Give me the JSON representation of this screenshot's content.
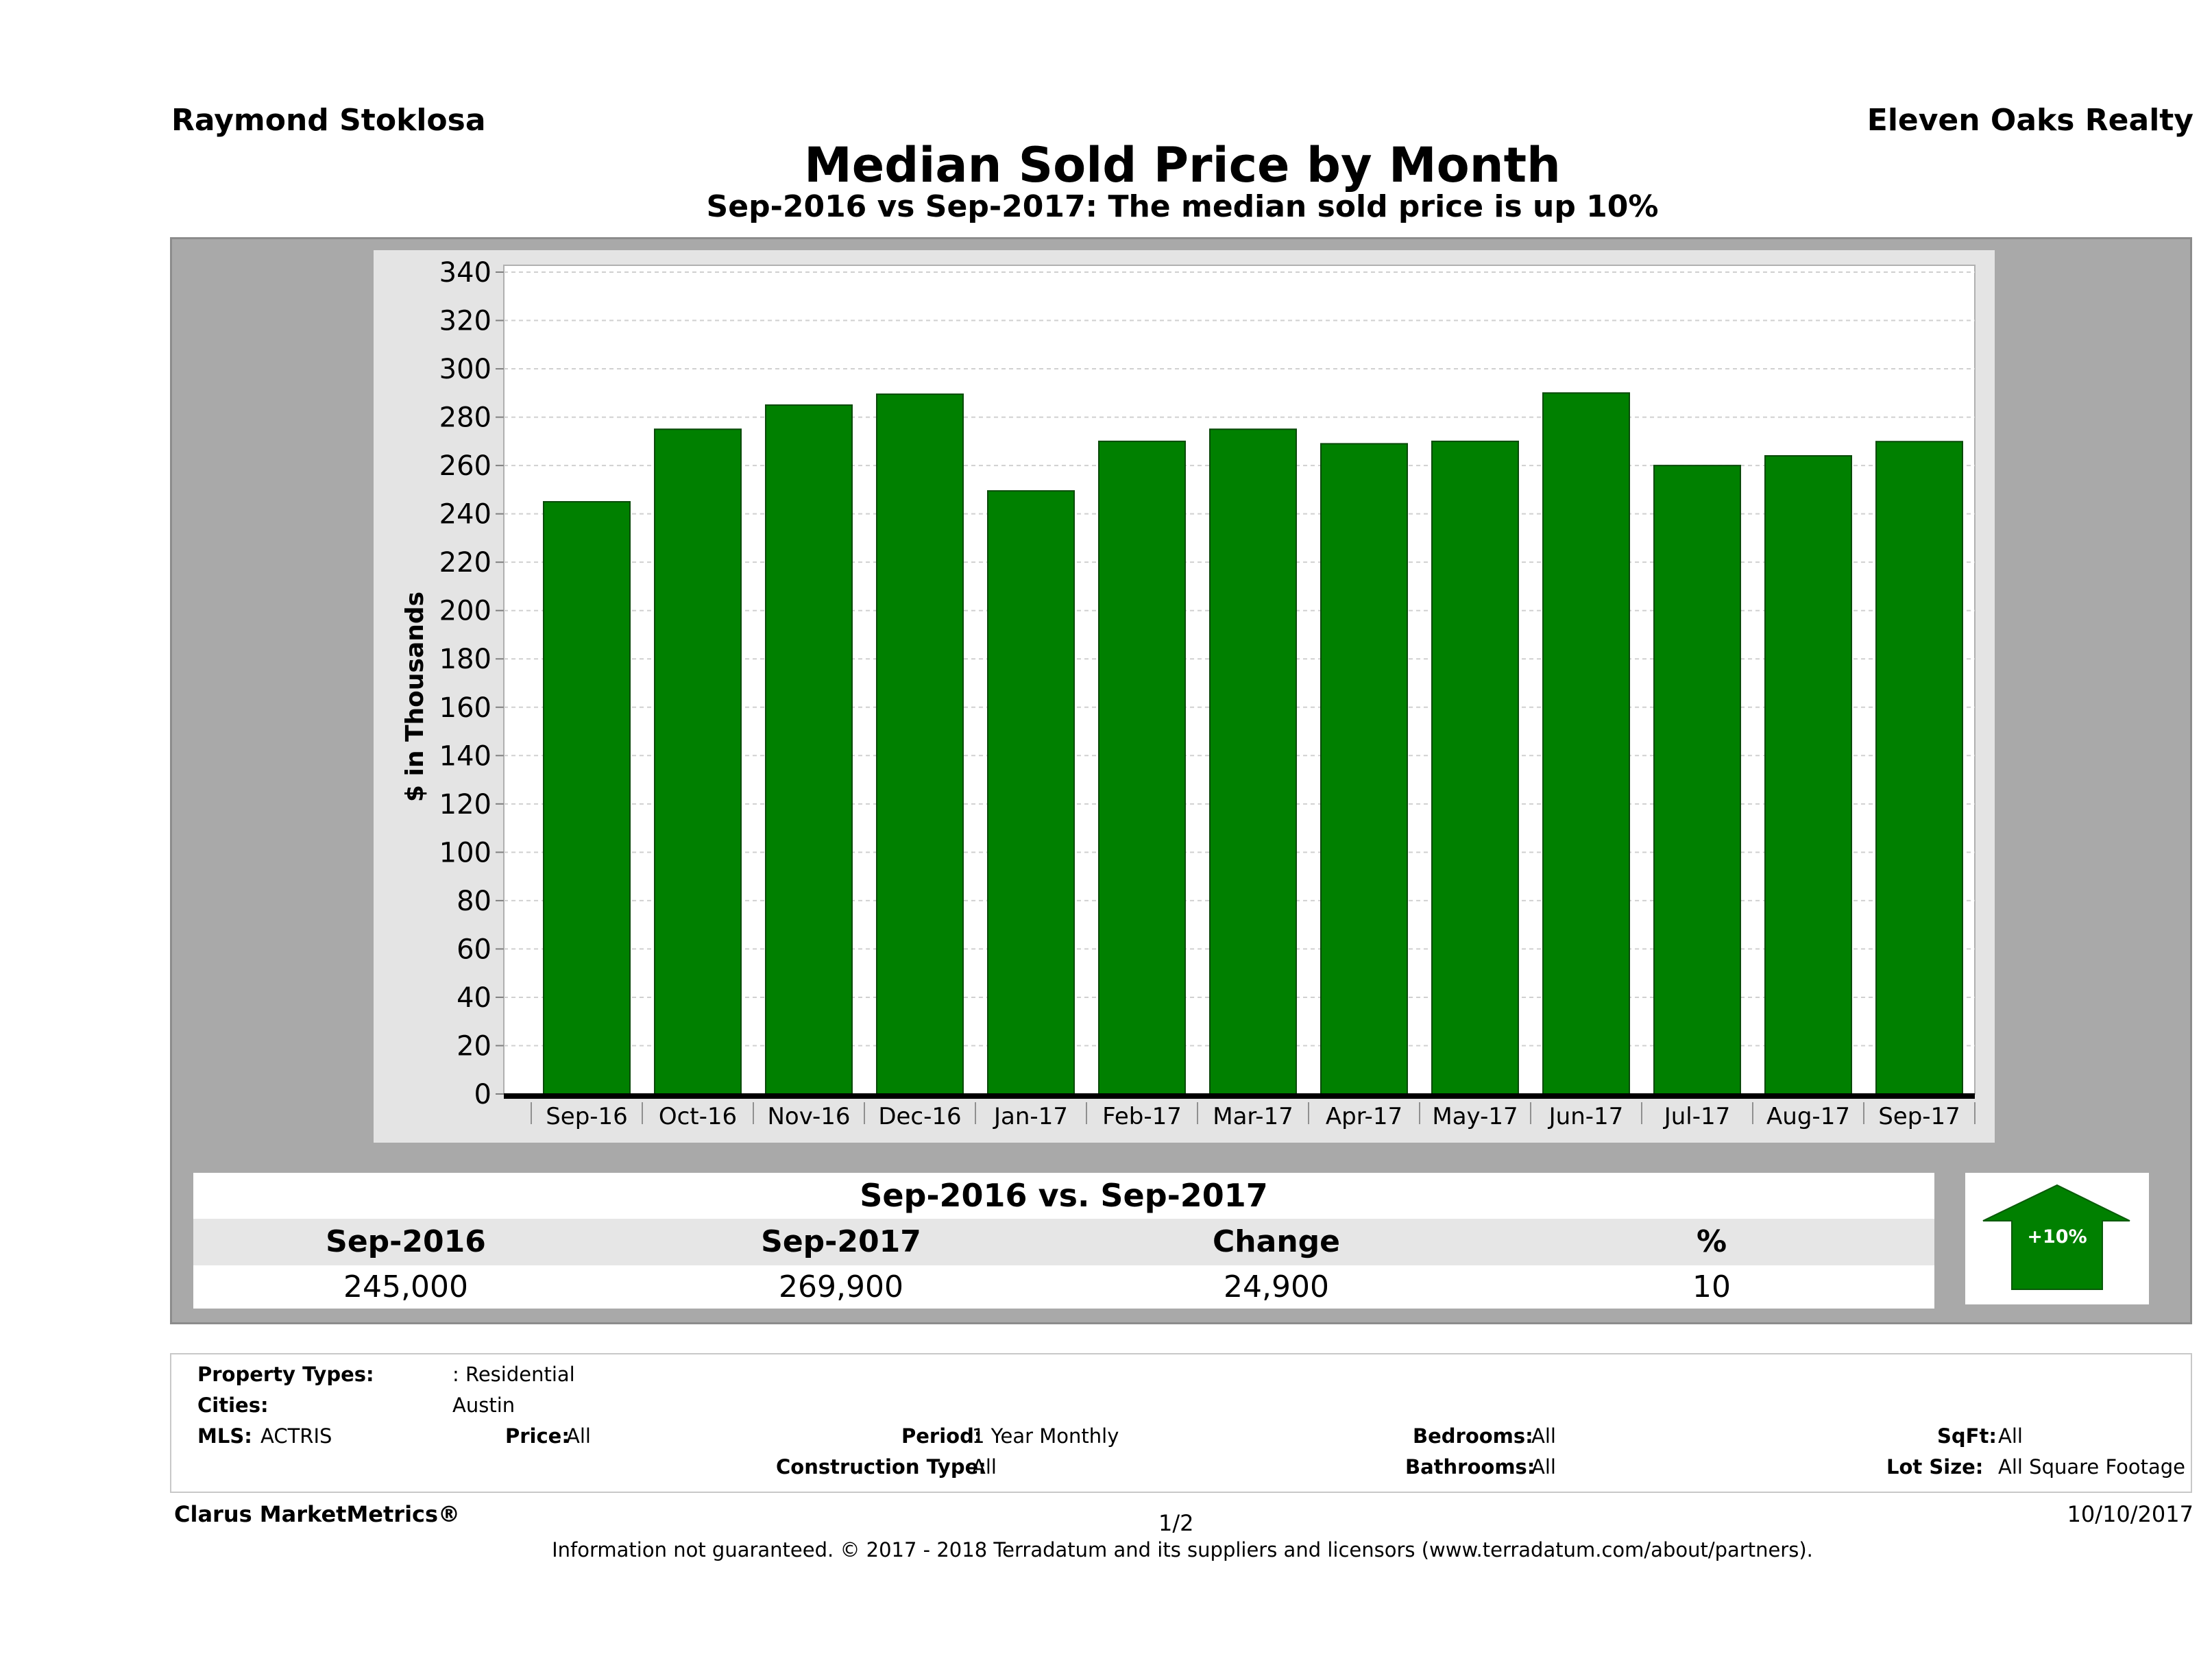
{
  "header": {
    "agent_name": "Raymond Stoklosa",
    "company": "Eleven Oaks Realty",
    "title": "Median Sold Price by Month",
    "subtitle": "Sep-2016 vs Sep-2017: The median sold price is up 10%"
  },
  "chart_data": {
    "type": "bar",
    "ylabel": "$ in Thousands",
    "categories": [
      "Sep-16",
      "Oct-16",
      "Nov-16",
      "Dec-16",
      "Jan-17",
      "Feb-17",
      "Mar-17",
      "Apr-17",
      "May-17",
      "Jun-17",
      "Jul-17",
      "Aug-17",
      "Sep-17"
    ],
    "values": [
      245,
      275,
      285,
      289.5,
      249.5,
      270,
      275,
      269,
      270,
      290,
      260,
      264,
      269.9
    ],
    "ylim": [
      0,
      340
    ],
    "yticks": [
      0,
      20,
      40,
      60,
      80,
      100,
      120,
      140,
      160,
      180,
      200,
      220,
      240,
      260,
      280,
      300,
      320,
      340
    ],
    "grid": true,
    "bar_color": "#008000"
  },
  "comparison": {
    "header": "Sep-2016 vs. Sep-2017",
    "columns": [
      "Sep-2016",
      "Sep-2017",
      "Change",
      "%"
    ],
    "values": [
      "245,000",
      "269,900",
      "24,900",
      "10"
    ],
    "badge": "+10%",
    "badge_icon": "up-arrow-icon",
    "badge_color": "#008000"
  },
  "criteria": {
    "property_types_label": "Property Types:",
    "property_types_value": ": Residential",
    "cities_label": "Cities:",
    "cities_value": "Austin",
    "mls_label": "MLS:",
    "mls_value": "ACTRIS",
    "price_label": "Price:",
    "price_value": "All",
    "period_label": "Period:",
    "period_value": "1 Year Monthly",
    "construction_label": "Construction Type:",
    "construction_value": "All",
    "bedrooms_label": "Bedrooms:",
    "bedrooms_value": "All",
    "bathrooms_label": "Bathrooms:",
    "bathrooms_value": "All",
    "sqft_label": "SqFt:",
    "sqft_value": "All",
    "lotsize_label": "Lot Size:",
    "lotsize_value": "All Square Footage"
  },
  "footer": {
    "brand": "Clarus MarketMetrics®",
    "page": "1/2",
    "date": "10/10/2017",
    "disclaimer": "Information not guaranteed. © 2017 - 2018 Terradatum and its suppliers and licensors (www.terradatum.com/about/partners)."
  }
}
